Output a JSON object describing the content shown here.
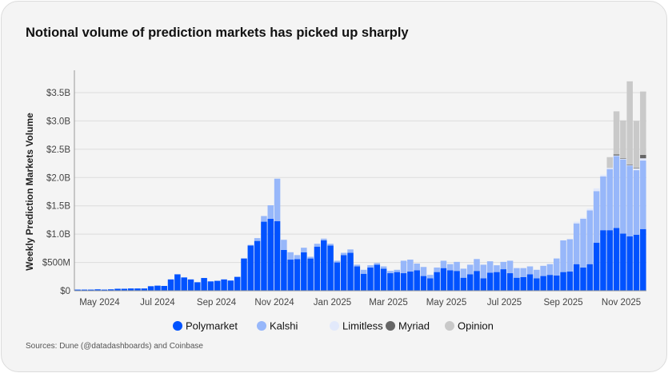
{
  "title": "Notional volume of prediction markets has picked up sharply",
  "source": "Sources: Dune (@datadashboards) and Coinbase",
  "chart_data": {
    "type": "bar",
    "stacked": true,
    "title": "Notional volume of prediction markets has picked up sharply",
    "xlabel": "",
    "ylabel": "Weekly Prediction Markets Volume",
    "ylim": [
      0,
      3.5
    ],
    "y_unit": "billions USD",
    "grid": true,
    "legend_position": "bottom",
    "yticks": [
      {
        "value": 0,
        "label": "$0"
      },
      {
        "value": 0.5,
        "label": "$500M"
      },
      {
        "value": 1.0,
        "label": "$1.0B"
      },
      {
        "value": 1.5,
        "label": "$1.5B"
      },
      {
        "value": 2.0,
        "label": "$2.0B"
      },
      {
        "value": 2.5,
        "label": "$2.5B"
      },
      {
        "value": 3.0,
        "label": "$3.0B"
      },
      {
        "value": 3.5,
        "label": "$3.5B"
      }
    ],
    "xticks": [
      {
        "date": "2024-05-01",
        "label": "May 2024"
      },
      {
        "date": "2024-07-01",
        "label": "Jul 2024"
      },
      {
        "date": "2024-09-01",
        "label": "Sep 2024"
      },
      {
        "date": "2024-11-01",
        "label": "Nov 2024"
      },
      {
        "date": "2025-01-01",
        "label": "Jan 2025"
      },
      {
        "date": "2025-03-01",
        "label": "Mar 2025"
      },
      {
        "date": "2025-05-01",
        "label": "May 2025"
      },
      {
        "date": "2025-07-01",
        "label": "Jul 2025"
      },
      {
        "date": "2025-09-01",
        "label": "Sep 2025"
      },
      {
        "date": "2025-11-01",
        "label": "Nov 2025"
      }
    ],
    "x": [
      "2024-04-08",
      "2024-04-15",
      "2024-04-22",
      "2024-04-29",
      "2024-05-06",
      "2024-05-13",
      "2024-05-20",
      "2024-05-27",
      "2024-06-03",
      "2024-06-10",
      "2024-06-17",
      "2024-06-24",
      "2024-07-01",
      "2024-07-08",
      "2024-07-15",
      "2024-07-22",
      "2024-07-29",
      "2024-08-05",
      "2024-08-12",
      "2024-08-19",
      "2024-08-26",
      "2024-09-02",
      "2024-09-09",
      "2024-09-16",
      "2024-09-23",
      "2024-09-30",
      "2024-10-07",
      "2024-10-14",
      "2024-10-21",
      "2024-10-28",
      "2024-11-04",
      "2024-11-11",
      "2024-11-18",
      "2024-11-25",
      "2024-12-02",
      "2024-12-09",
      "2024-12-16",
      "2024-12-23",
      "2024-12-30",
      "2025-01-06",
      "2025-01-13",
      "2025-01-20",
      "2025-01-27",
      "2025-02-03",
      "2025-02-10",
      "2025-02-17",
      "2025-02-24",
      "2025-03-03",
      "2025-03-10",
      "2025-03-17",
      "2025-03-24",
      "2025-03-31",
      "2025-04-07",
      "2025-04-14",
      "2025-04-21",
      "2025-04-28",
      "2025-05-05",
      "2025-05-12",
      "2025-05-19",
      "2025-05-26",
      "2025-06-02",
      "2025-06-09",
      "2025-06-16",
      "2025-06-23",
      "2025-06-30",
      "2025-07-07",
      "2025-07-14",
      "2025-07-21",
      "2025-07-28",
      "2025-08-04",
      "2025-08-11",
      "2025-08-18",
      "2025-08-25",
      "2025-09-01",
      "2025-09-08",
      "2025-09-15",
      "2025-09-22",
      "2025-09-29",
      "2025-10-06",
      "2025-10-13",
      "2025-10-20",
      "2025-10-27",
      "2025-11-03",
      "2025-11-10",
      "2025-11-17",
      "2025-11-24"
    ],
    "series": [
      {
        "name": "Polymarket",
        "color": "#0052ff",
        "values": [
          0.02,
          0.02,
          0.02,
          0.025,
          0.02,
          0.025,
          0.035,
          0.035,
          0.04,
          0.04,
          0.04,
          0.08,
          0.09,
          0.085,
          0.2,
          0.29,
          0.235,
          0.2,
          0.15,
          0.225,
          0.165,
          0.175,
          0.2,
          0.18,
          0.245,
          0.57,
          0.8,
          0.88,
          1.22,
          1.27,
          1.23,
          0.72,
          0.55,
          0.56,
          0.68,
          0.57,
          0.78,
          0.89,
          0.8,
          0.5,
          0.63,
          0.67,
          0.43,
          0.3,
          0.41,
          0.46,
          0.39,
          0.31,
          0.33,
          0.31,
          0.34,
          0.36,
          0.26,
          0.22,
          0.33,
          0.4,
          0.36,
          0.35,
          0.23,
          0.29,
          0.35,
          0.22,
          0.32,
          0.33,
          0.38,
          0.31,
          0.23,
          0.24,
          0.29,
          0.22,
          0.26,
          0.28,
          0.27,
          0.33,
          0.34,
          0.47,
          0.41,
          0.47,
          0.85,
          1.07,
          1.07,
          1.11,
          1.01,
          0.96,
          0.99,
          1.09
        ]
      },
      {
        "name": "Kalshi",
        "color": "#97b7fa",
        "values": [
          0,
          0,
          0,
          0,
          0,
          0,
          0,
          0,
          0,
          0,
          0,
          0,
          0,
          0,
          0,
          0,
          0,
          0,
          0,
          0,
          0,
          0,
          0,
          0,
          0,
          0,
          0.01,
          0.05,
          0.1,
          0.24,
          0.75,
          0.18,
          0.13,
          0.07,
          0.08,
          0.03,
          0.05,
          0.03,
          0.03,
          0.03,
          0.04,
          0.06,
          0.03,
          0.07,
          0.04,
          0.03,
          0.04,
          0.04,
          0.04,
          0.22,
          0.21,
          0.12,
          0.16,
          0.06,
          0.08,
          0.13,
          0.11,
          0.16,
          0.16,
          0.17,
          0.21,
          0.24,
          0.2,
          0.12,
          0.13,
          0.22,
          0.17,
          0.16,
          0.14,
          0.15,
          0.18,
          0.19,
          0.3,
          0.56,
          0.57,
          0.72,
          0.86,
          0.95,
          0.91,
          0.95,
          1.08,
          1.27,
          1.31,
          1.25,
          1.14,
          1.21
        ]
      },
      {
        "name": "Limitless",
        "color": "#e2e9fb",
        "values": [
          0,
          0,
          0,
          0,
          0,
          0,
          0,
          0,
          0,
          0,
          0,
          0,
          0,
          0,
          0,
          0,
          0,
          0,
          0,
          0,
          0,
          0,
          0,
          0,
          0,
          0,
          0,
          0,
          0,
          0,
          0,
          0,
          0,
          0,
          0,
          0,
          0,
          0,
          0,
          0,
          0,
          0,
          0,
          0,
          0,
          0,
          0,
          0,
          0,
          0,
          0,
          0,
          0,
          0,
          0,
          0,
          0,
          0,
          0,
          0,
          0,
          0,
          0,
          0,
          0,
          0,
          0,
          0,
          0,
          0,
          0,
          0,
          0,
          0,
          0,
          0.03,
          0.02,
          0.03,
          0.05,
          0.03,
          0.02,
          0.01,
          0.01,
          0.01,
          0.03,
          0.04
        ]
      },
      {
        "name": "Myriad",
        "color": "#666666",
        "values": [
          0,
          0,
          0,
          0,
          0,
          0,
          0,
          0,
          0,
          0,
          0,
          0,
          0,
          0,
          0,
          0,
          0,
          0,
          0,
          0,
          0,
          0,
          0,
          0,
          0,
          0,
          0,
          0,
          0,
          0,
          0,
          0,
          0,
          0,
          0,
          0,
          0,
          0,
          0,
          0,
          0,
          0,
          0,
          0,
          0,
          0,
          0,
          0,
          0,
          0,
          0,
          0,
          0,
          0,
          0,
          0,
          0,
          0,
          0,
          0,
          0,
          0,
          0,
          0,
          0,
          0,
          0,
          0,
          0,
          0,
          0,
          0,
          0,
          0,
          0,
          0,
          0,
          0,
          0,
          0,
          0,
          0.02,
          0.01,
          0.01,
          0.01,
          0.06
        ]
      },
      {
        "name": "Opinion",
        "color": "#c9c9c9",
        "values": [
          0,
          0,
          0,
          0,
          0,
          0,
          0,
          0,
          0,
          0,
          0,
          0,
          0,
          0,
          0,
          0,
          0,
          0,
          0,
          0,
          0,
          0,
          0,
          0,
          0,
          0,
          0,
          0,
          0,
          0,
          0,
          0,
          0,
          0,
          0,
          0,
          0,
          0,
          0,
          0,
          0,
          0,
          0,
          0,
          0,
          0,
          0,
          0,
          0,
          0,
          0,
          0,
          0,
          0,
          0,
          0,
          0,
          0,
          0,
          0,
          0,
          0,
          0,
          0,
          0,
          0,
          0,
          0,
          0,
          0,
          0,
          0,
          0,
          0,
          0,
          0,
          0,
          0,
          0,
          0,
          0.19,
          0.76,
          0.67,
          1.47,
          0.83,
          1.12
        ]
      }
    ]
  }
}
